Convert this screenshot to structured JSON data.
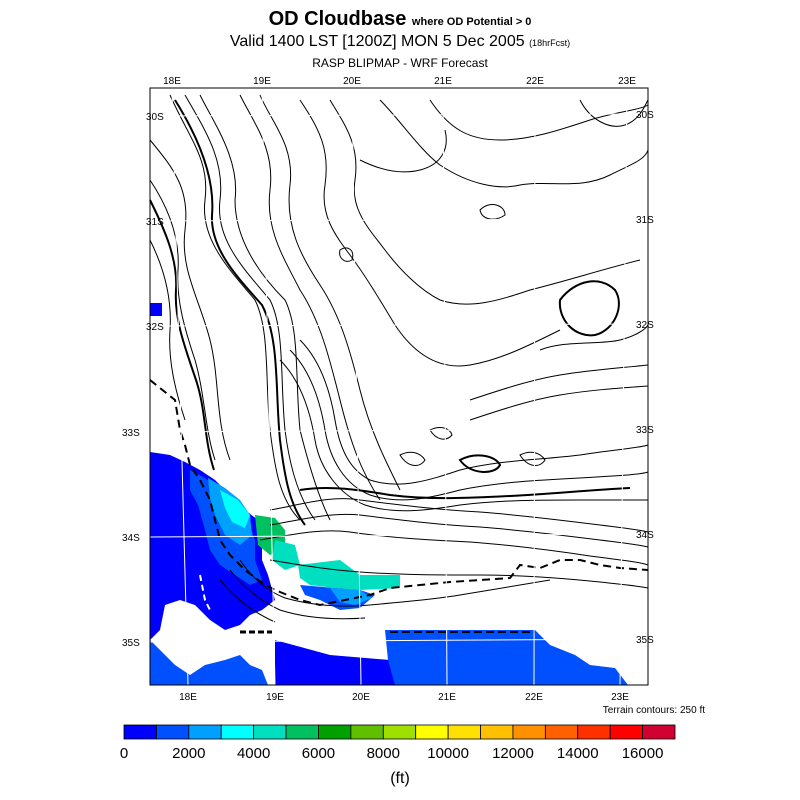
{
  "header": {
    "title": "OD Cloudbase",
    "title_suffix": "where OD Potential > 0",
    "valid_line": "Valid 1400 LST [1200Z] MON 5 Dec 2005",
    "forecast_hours": "(18hrFcst)",
    "subtitle": "RASP BLIPMAP - WRF Forecast"
  },
  "map": {
    "top_lon_labels": [
      "18E",
      "19E",
      "20E",
      "21E",
      "22E",
      "23E"
    ],
    "bottom_lon_labels": [
      "18E",
      "19E",
      "20E",
      "21E",
      "22E",
      "23E"
    ],
    "left_lat_labels": [
      "30S",
      "31S",
      "32S",
      "33S",
      "34S",
      "35S"
    ],
    "right_lat_labels": [
      "30S",
      "31S",
      "32S",
      "33S",
      "34S",
      "35S"
    ],
    "terrain_note": "Terrain contours: 250 ft"
  },
  "colorbar": {
    "colors": [
      "#0000ff",
      "#0050ff",
      "#00a0ff",
      "#00ffff",
      "#00e0c0",
      "#00c060",
      "#00a000",
      "#60c000",
      "#a0e000",
      "#ffff00",
      "#ffe000",
      "#ffc000",
      "#ff9000",
      "#ff6000",
      "#ff3000",
      "#ff0000",
      "#d00030"
    ],
    "tick_labels": [
      "0",
      "2000",
      "4000",
      "6000",
      "8000",
      "10000",
      "12000",
      "14000",
      "16000"
    ],
    "units": "(ft)"
  }
}
